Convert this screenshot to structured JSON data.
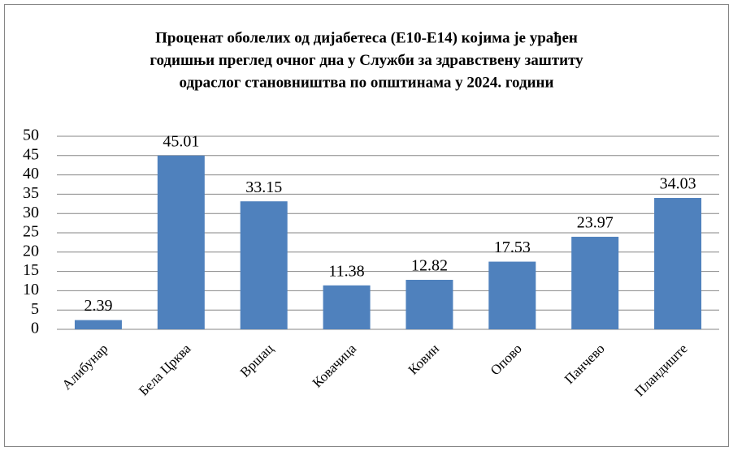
{
  "chart_data": {
    "type": "bar",
    "title": [
      "Проценат оболелих од дијабетеса (Е10-Е14) којима је урађен",
      "годишњи преглед очног дна у Служби за здравствену заштиту",
      "одраслог становништва по општинама у 2024. години"
    ],
    "categories": [
      "Алибунар",
      "Бела Црква",
      "Вршац",
      "Ковачица",
      "Ковин",
      "Опово",
      "Панчево",
      "Пландиште"
    ],
    "values": [
      2.39,
      45.01,
      33.15,
      11.38,
      12.82,
      17.53,
      23.97,
      34.03
    ],
    "color": "#4f81bd",
    "ylim": [
      0,
      50
    ],
    "yticks": [
      0,
      5,
      10,
      15,
      20,
      25,
      30,
      35,
      40,
      45,
      50
    ],
    "grid": true
  }
}
